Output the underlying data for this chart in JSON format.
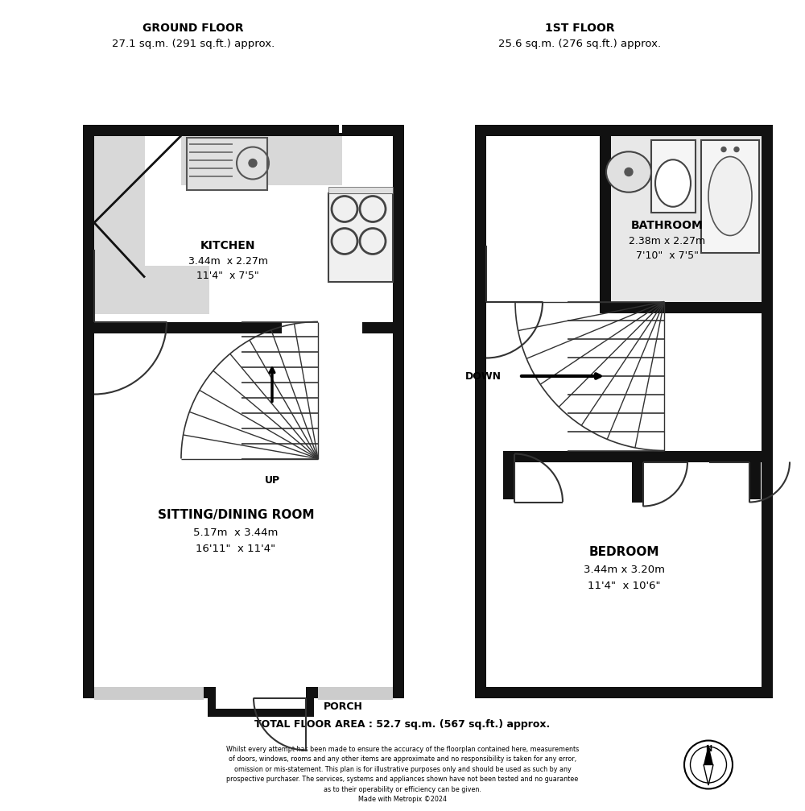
{
  "background_color": "#ffffff",
  "wall_color": "#111111",
  "ground_floor_label": "GROUND FLOOR",
  "ground_floor_area": "27.1 sq.m. (291 sq.ft.) approx.",
  "first_floor_label": "1ST FLOOR",
  "first_floor_area": "25.6 sq.m. (276 sq.ft.) approx.",
  "kitchen_label": "KITCHEN",
  "kitchen_dims1": "3.44m  x 2.27m",
  "kitchen_dims2": "11'4\"  x 7'5\"",
  "sitting_label": "SITTING/DINING ROOM",
  "sitting_dims1": "5.17m  x 3.44m",
  "sitting_dims2": "16'11\"  x 11'4\"",
  "porch_label": "PORCH",
  "bathroom_label": "BATHROOM",
  "bathroom_dims1": "2.38m x 2.27m",
  "bathroom_dims2": "7'10\"  x 7'5\"",
  "bedroom_label": "BEDROOM",
  "bedroom_dims1": "3.44m x 3.20m",
  "bedroom_dims2": "11'4\"  x 10'6\"",
  "total_area": "TOTAL FLOOR AREA : 52.7 sq.m. (567 sq.ft.) approx.",
  "disclaimer": "Whilst every attempt has been made to ensure the accuracy of the floorplan contained here, measurements\nof doors, windows, rooms and any other items are approximate and no responsibility is taken for any error,\nomission or mis-statement. This plan is for illustrative purposes only and should be used as such by any\nprospective purchaser. The services, systems and appliances shown have not been tested and no guarantee\nas to their operability or efficiency can be given.\nMade with Metropix ©2024",
  "up_label": "UP",
  "down_label": "DOWN"
}
